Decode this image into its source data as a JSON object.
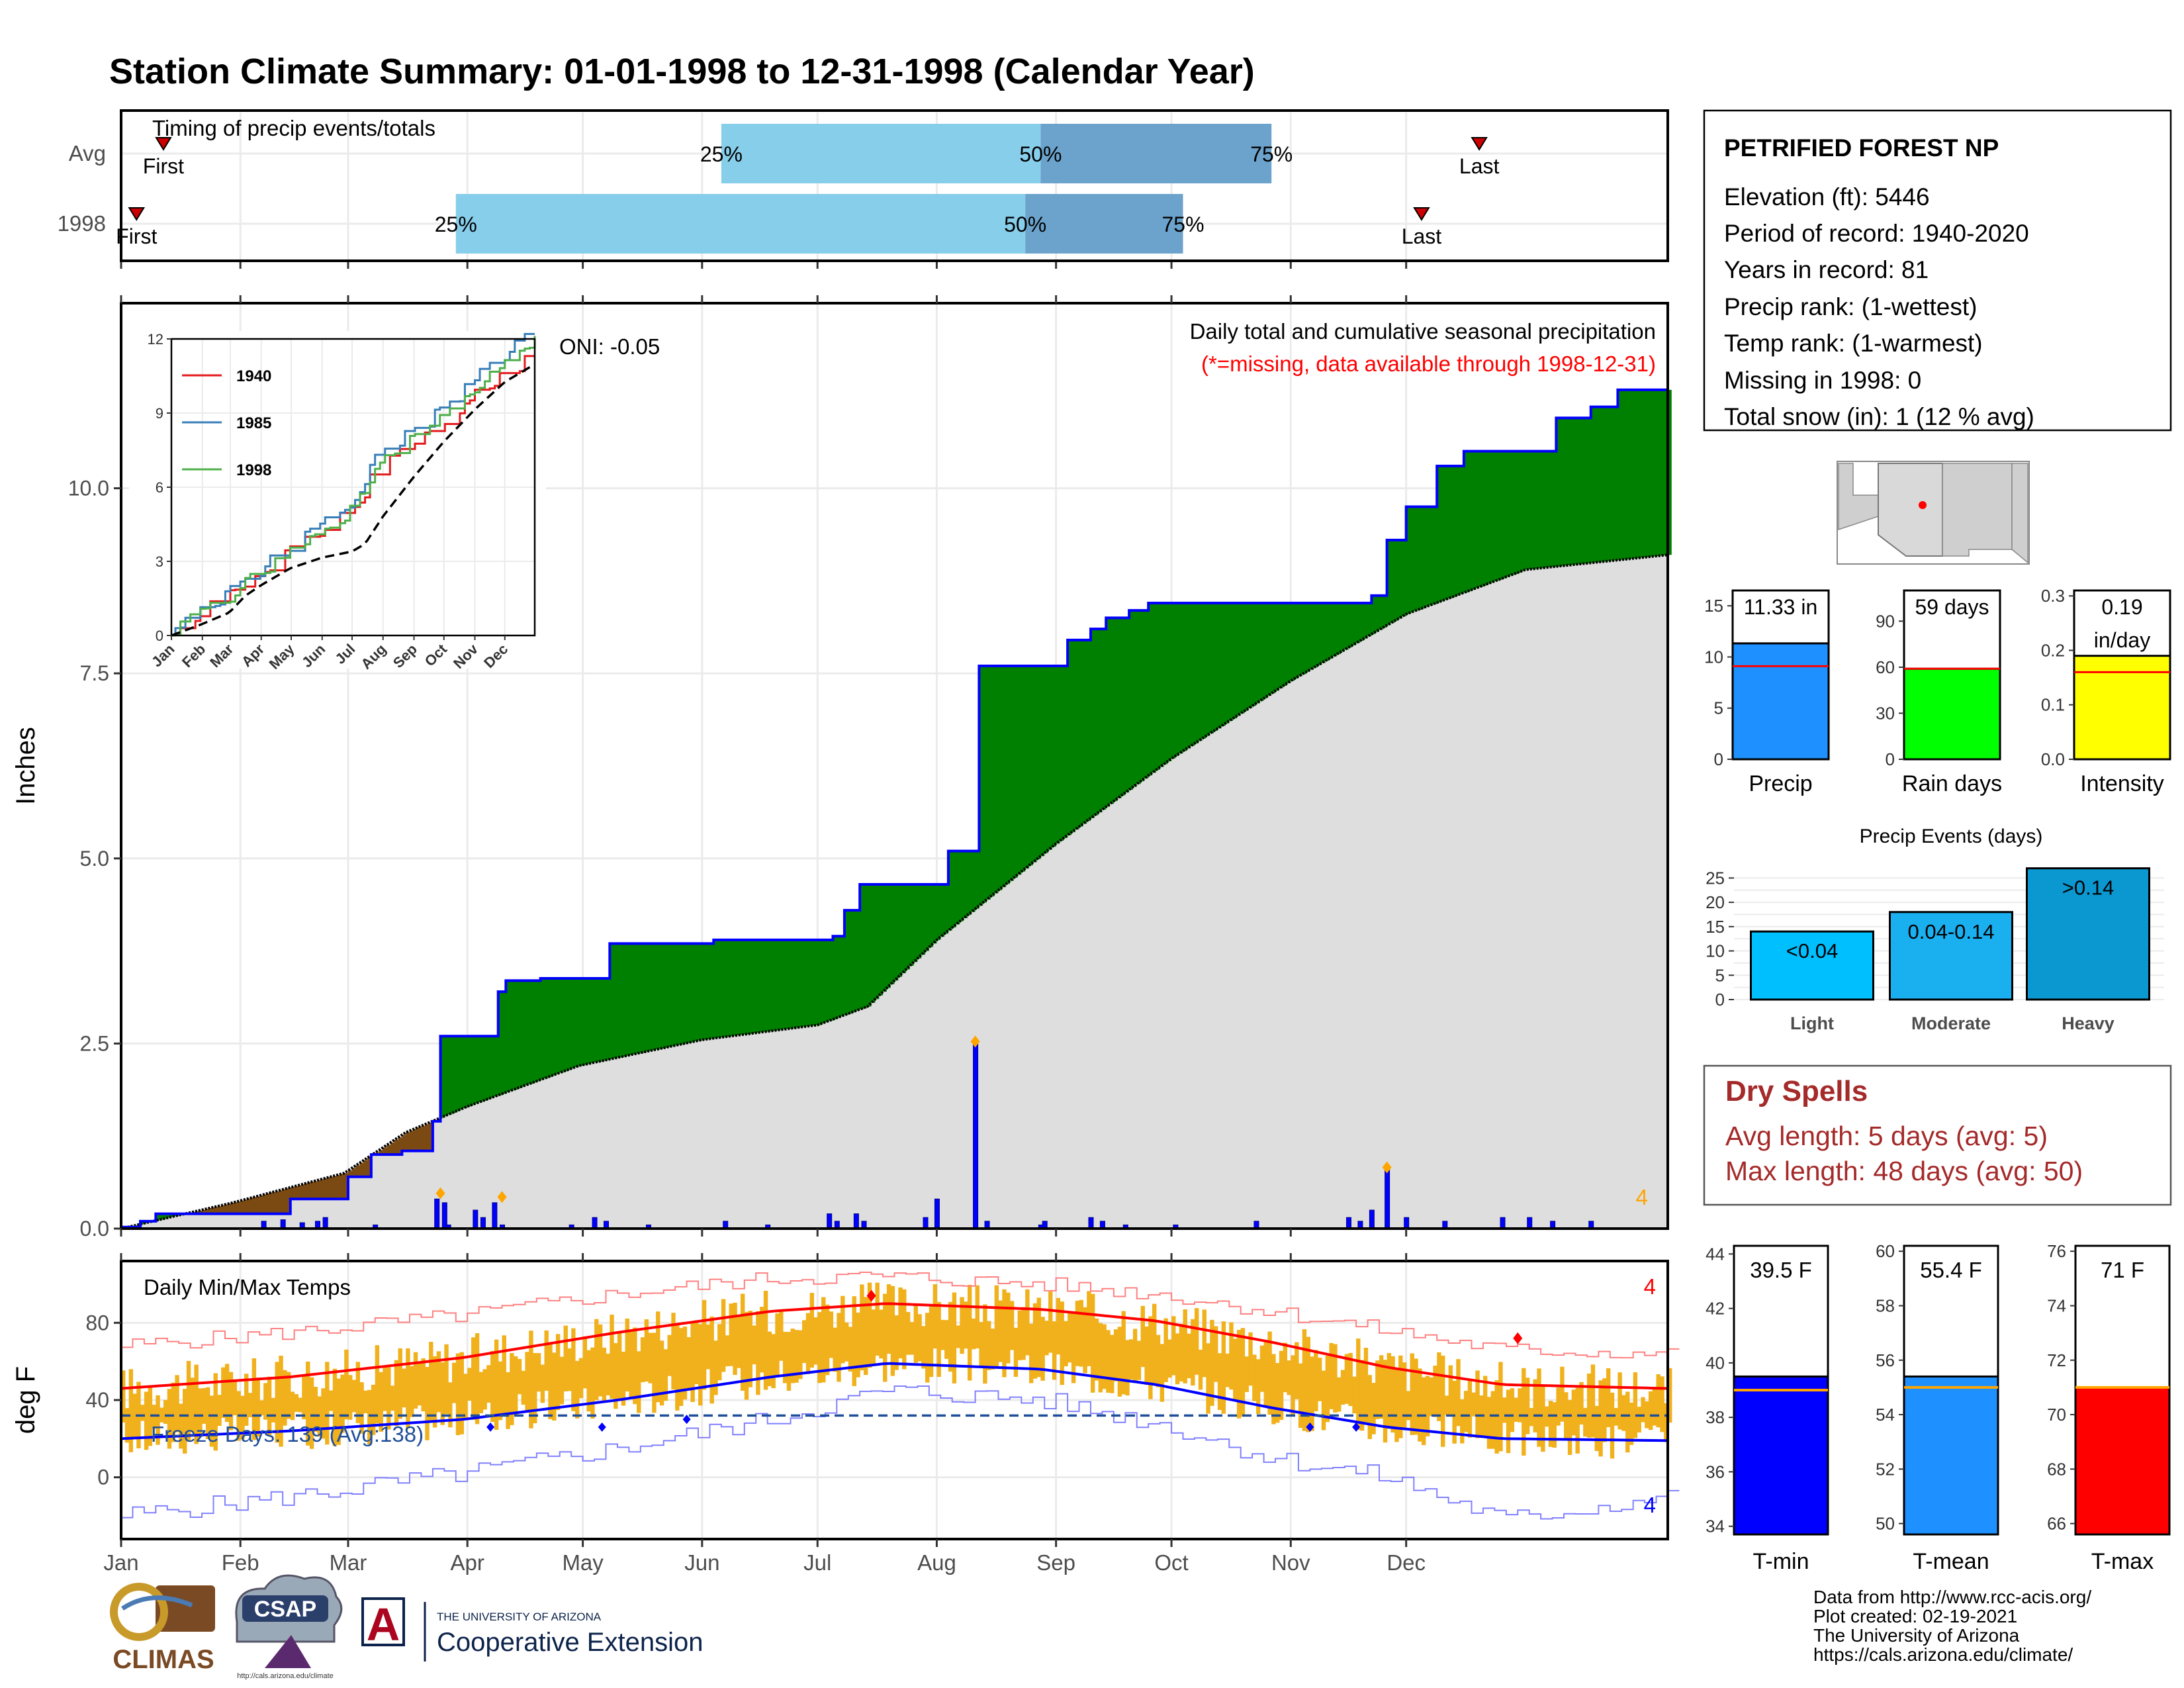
{
  "title": "Station Climate Summary: 01-01-1998 to 12-31-1998 (Calendar Year)",
  "colors": {
    "title": "#000080",
    "frame": "#000000",
    "grid": "#ebebeb",
    "q_light": "#87ceeb",
    "q_dark": "#6ba3cc",
    "marker": "#cc0000",
    "above_avg": "#008000",
    "below_avg": "#7b4a12",
    "avg_fill": "#dedede",
    "obs_line": "#0000ff",
    "daily_bar": "#0000ff",
    "extreme_dot": "#ffa500",
    "temp_bar": "#f0b11c",
    "tmax_avg": "#ff0000",
    "tmin_avg": "#0000ff",
    "freeze_line": "#1f4e99",
    "dry_spells": "#a52a2a"
  },
  "timing_panel": {
    "title": "Timing of precip events/totals",
    "row_labels": [
      "Avg",
      "1998"
    ],
    "pct_labels": [
      "25%",
      "50%",
      "75%"
    ],
    "first_label": "First",
    "last_label": "Last",
    "avg": {
      "first_doy": 12,
      "q25_doy": 157,
      "q50_doy": 240,
      "q75_doy": 300,
      "last_doy": 354
    },
    "y1998": {
      "first_doy": 5,
      "q25_doy": 88,
      "q50_doy": 236,
      "q75_doy": 277,
      "last_doy": 339
    }
  },
  "precip_panel": {
    "title": "Daily total and cumulative seasonal precipitation",
    "missing_note": "(*=missing, data available through 1998-12-31)",
    "oni": "ONI: -0.05",
    "ylabel": "Inches",
    "ylim": [
      0,
      12.5
    ],
    "yticks": [
      "0.0",
      "2.5",
      "5.0",
      "7.5",
      "10.0"
    ],
    "corner_count": "4"
  },
  "inset": {
    "ylim": [
      0,
      12
    ],
    "yticks": [
      "0",
      "3",
      "6",
      "9",
      "12"
    ],
    "months": [
      "Jan",
      "Feb",
      "Mar",
      "Apr",
      "May",
      "Jun",
      "Jul",
      "Aug",
      "Sep",
      "Oct",
      "Nov",
      "Dec"
    ],
    "legend": [
      {
        "name": "1940",
        "color": "#e41a1c"
      },
      {
        "name": "1985",
        "color": "#377eb8"
      },
      {
        "name": "1998",
        "color": "#4daf4a"
      }
    ]
  },
  "temp_panel": {
    "title": "Daily Min/Max Temps",
    "ylabel": "deg F",
    "ylim": [
      -32,
      112
    ],
    "yticks": [
      "0",
      "40",
      "80"
    ],
    "freeze_label": "Freeze Days: 139 (Avg:138)",
    "count_top": "4",
    "count_bottom": "4"
  },
  "months": [
    "Jan",
    "Feb",
    "Mar",
    "Apr",
    "May",
    "Jun",
    "Jul",
    "Aug",
    "Sep",
    "Oct",
    "Nov",
    "Dec"
  ],
  "station": {
    "name": "PETRIFIED FOREST NP",
    "lines": [
      "Elevation (ft): 5446",
      "Period of record: 1940-2020",
      "Years in record: 81",
      "Precip rank:  (1-wettest)",
      "Temp rank:  (1-warmest)",
      "Missing in 1998: 0",
      "Total snow (in): 1 (12 % avg)"
    ]
  },
  "summary_bars": [
    {
      "label": "Precip",
      "value_text": "11.33 in",
      "value": 11.33,
      "avg": 9.1,
      "ylim": [
        0,
        16.5
      ],
      "ticks": [
        0,
        5,
        10,
        15
      ],
      "color": "#1e90ff"
    },
    {
      "label": "Rain days",
      "value_text": "59 days",
      "value": 59,
      "avg": 59,
      "ylim": [
        0,
        110
      ],
      "ticks": [
        0,
        30,
        60,
        90
      ],
      "color": "#00ff00"
    },
    {
      "label": "Intensity",
      "value_text": "0.19\nin/day",
      "value": 0.19,
      "avg": 0.16,
      "ylim": [
        0,
        0.31
      ],
      "ticks": [
        0.0,
        0.1,
        0.2,
        0.3
      ],
      "color": "#ffff00"
    }
  ],
  "precip_events": {
    "title": "Precip Events (days)",
    "ylim": [
      0,
      27.5
    ],
    "ticks": [
      0,
      5,
      10,
      15,
      20,
      25
    ],
    "bars": [
      {
        "label": "Light",
        "value": 14,
        "text": "<0.04",
        "color": "#00bfff"
      },
      {
        "label": "Moderate",
        "value": 18,
        "text": "0.04-0.14",
        "color": "#1ab0ef"
      },
      {
        "label": "Heavy",
        "value": 27,
        "text": ">0.14",
        "color": "#0b98d1"
      }
    ]
  },
  "dry_spells": {
    "title": "Dry Spells",
    "avg_line": "Avg length: 5 days (avg: 5)",
    "max_line": "Max length: 48 days (avg: 50)"
  },
  "temp_bars": [
    {
      "label": "T-min",
      "value_text": "39.5 F",
      "value": 39.5,
      "avg": 39.0,
      "ylim": [
        33.7,
        44.3
      ],
      "ticks": [
        34,
        36,
        38,
        40,
        42,
        44
      ],
      "color": "#0000ff"
    },
    {
      "label": "T-mean",
      "value_text": "55.4 F",
      "value": 55.4,
      "avg": 55.0,
      "ylim": [
        49.6,
        60.2
      ],
      "ticks": [
        50,
        52,
        54,
        56,
        58,
        60
      ],
      "color": "#1e90ff"
    },
    {
      "label": "T-max",
      "value_text": "71 F",
      "value": 71.0,
      "avg": 71.0,
      "ylim": [
        65.6,
        76.2
      ],
      "ticks": [
        66,
        68,
        70,
        72,
        74,
        76
      ],
      "color": "#ff0000"
    }
  ],
  "credits": [
    "Data from http://www.rcc-acis.org/",
    "Plot created: 02-19-2021",
    "The University of Arizona",
    "https://cals.arizona.edu/climate/"
  ],
  "logos": {
    "climas": "CLIMAS",
    "csap": "CSAP",
    "csap_url": "http://cals.arizona.edu/climate",
    "ua_small": "THE UNIVERSITY OF ARIZONA",
    "ua_big": "Cooperative Extension",
    "ua_mark": "A"
  },
  "chart_data": {
    "type": "area",
    "title": "Daily total and cumulative seasonal precipitation",
    "ylabel": "Inches",
    "ylim": [
      0,
      12.5
    ],
    "series": [
      {
        "name": "1998",
        "points": [
          [
            1,
            0.02
          ],
          [
            6,
            0.1
          ],
          [
            10,
            0.2
          ],
          [
            35,
            0.2
          ],
          [
            45,
            0.4
          ],
          [
            57,
            0.4
          ],
          [
            60,
            0.7
          ],
          [
            66,
            1.0
          ],
          [
            74,
            1.05
          ],
          [
            82,
            1.45
          ],
          [
            84,
            2.6
          ],
          [
            97,
            2.6
          ],
          [
            99,
            3.2
          ],
          [
            101,
            3.35
          ],
          [
            110,
            3.38
          ],
          [
            128,
            3.85
          ],
          [
            155,
            3.9
          ],
          [
            186,
            3.95
          ],
          [
            189,
            4.3
          ],
          [
            193,
            4.65
          ],
          [
            212,
            4.65
          ],
          [
            216,
            5.1
          ],
          [
            223,
            5.1
          ],
          [
            224,
            7.6
          ],
          [
            244,
            7.6
          ],
          [
            247,
            7.95
          ],
          [
            253,
            8.1
          ],
          [
            257,
            8.25
          ],
          [
            263,
            8.35
          ],
          [
            268,
            8.45
          ],
          [
            310,
            8.45
          ],
          [
            326,
            8.55
          ],
          [
            330,
            9.3
          ],
          [
            335,
            9.75
          ],
          [
            343,
            10.3
          ],
          [
            350,
            10.5
          ],
          [
            370,
            10.5
          ],
          [
            374,
            10.95
          ],
          [
            383,
            11.1
          ],
          [
            390,
            11.33
          ],
          [
            403,
            11.33
          ]
        ]
      },
      {
        "name": "Avg",
        "points": [
          [
            1,
            0.0
          ],
          [
            30,
            0.35
          ],
          [
            59,
            0.75
          ],
          [
            75,
            1.3
          ],
          [
            91,
            1.65
          ],
          [
            120,
            2.2
          ],
          [
            152,
            2.55
          ],
          [
            182,
            2.75
          ],
          [
            195,
            3.0
          ],
          [
            213,
            3.9
          ],
          [
            244,
            5.2
          ],
          [
            274,
            6.35
          ],
          [
            305,
            7.4
          ],
          [
            335,
            8.3
          ],
          [
            366,
            8.9
          ],
          [
            403,
            9.1
          ]
        ]
      }
    ],
    "daily_precip": [
      [
        38,
        0.1
      ],
      [
        43,
        0.12
      ],
      [
        48,
        0.08
      ],
      [
        52,
        0.1
      ],
      [
        54,
        0.15
      ],
      [
        67,
        0.05
      ],
      [
        83,
        0.4
      ],
      [
        85,
        0.35
      ],
      [
        86,
        0.05
      ],
      [
        93,
        0.25
      ],
      [
        95,
        0.15
      ],
      [
        98,
        0.35
      ],
      [
        100,
        0.05
      ],
      [
        118,
        0.05
      ],
      [
        124,
        0.15
      ],
      [
        127,
        0.1
      ],
      [
        138,
        0.05
      ],
      [
        158,
        0.1
      ],
      [
        169,
        0.05
      ],
      [
        185,
        0.2
      ],
      [
        187,
        0.1
      ],
      [
        192,
        0.2
      ],
      [
        194,
        0.1
      ],
      [
        210,
        0.15
      ],
      [
        213,
        0.4
      ],
      [
        223,
        2.5
      ],
      [
        226,
        0.1
      ],
      [
        240,
        0.05
      ],
      [
        241,
        0.1
      ],
      [
        253,
        0.15
      ],
      [
        256,
        0.1
      ],
      [
        262,
        0.05
      ],
      [
        275,
        0.05
      ],
      [
        296,
        0.1
      ],
      [
        320,
        0.15
      ],
      [
        323,
        0.1
      ],
      [
        326,
        0.25
      ],
      [
        330,
        0.8
      ],
      [
        335,
        0.15
      ],
      [
        345,
        0.1
      ],
      [
        360,
        0.15
      ],
      [
        367,
        0.15
      ],
      [
        373,
        0.1
      ],
      [
        383,
        0.1
      ]
    ],
    "extremes_marked": [
      [
        84,
        0.45
      ],
      [
        100,
        0.4
      ],
      [
        223,
        2.5
      ],
      [
        330,
        0.8
      ]
    ],
    "temperature": {
      "tmax_avg": [
        [
          1,
          46
        ],
        [
          45,
          52
        ],
        [
          90,
          62
        ],
        [
          130,
          75
        ],
        [
          170,
          86
        ],
        [
          200,
          90
        ],
        [
          240,
          87
        ],
        [
          270,
          81
        ],
        [
          300,
          70
        ],
        [
          330,
          57
        ],
        [
          360,
          48
        ],
        [
          403,
          46
        ]
      ],
      "tmin_avg": [
        [
          1,
          20
        ],
        [
          45,
          24
        ],
        [
          90,
          30
        ],
        [
          130,
          40
        ],
        [
          170,
          52
        ],
        [
          200,
          59
        ],
        [
          240,
          56
        ],
        [
          270,
          48
        ],
        [
          300,
          36
        ],
        [
          330,
          26
        ],
        [
          360,
          20
        ],
        [
          403,
          19
        ]
      ],
      "tmax_record": [
        [
          1,
          68
        ],
        [
          45,
          75
        ],
        [
          90,
          84
        ],
        [
          130,
          95
        ],
        [
          170,
          103
        ],
        [
          200,
          104
        ],
        [
          240,
          100
        ],
        [
          270,
          95
        ],
        [
          300,
          86
        ],
        [
          330,
          76
        ],
        [
          360,
          66
        ],
        [
          403,
          64
        ]
      ],
      "tmin_record": [
        [
          1,
          -20
        ],
        [
          45,
          -10
        ],
        [
          90,
          2
        ],
        [
          130,
          15
        ],
        [
          170,
          30
        ],
        [
          200,
          45
        ],
        [
          240,
          40
        ],
        [
          270,
          28
        ],
        [
          300,
          10
        ],
        [
          330,
          0
        ],
        [
          360,
          -22
        ],
        [
          403,
          -10
        ]
      ],
      "freeze_threshold": 32,
      "record_high_markers": [
        [
          196,
          94
        ],
        [
          364,
          72
        ]
      ],
      "record_low_markers": [
        [
          148,
          30
        ],
        [
          310,
          26
        ],
        [
          322,
          26
        ],
        [
          97,
          26
        ],
        [
          126,
          26
        ]
      ]
    }
  }
}
